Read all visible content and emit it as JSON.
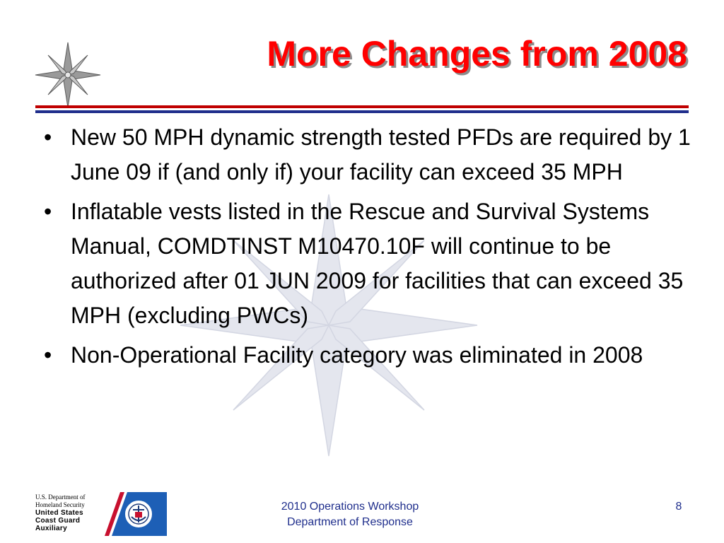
{
  "slide": {
    "title": "More Changes from 2008",
    "bullets": [
      "New 50 MPH dynamic strength tested PFDs are required by 1 June 09 if (and only if) your facility can exceed 35 MPH",
      "Inflatable vests listed in the Rescue and Survival Systems Manual, COMDTINST M10470.10F will continue to be authorized after 01 JUN 2009 for facilities that can exceed 35 MPH (excluding PWCs)",
      "Non-Operational Facility category was eliminated in 2008"
    ],
    "bullet_glyph": "•"
  },
  "footer": {
    "logo_lines": [
      "U.S. Department of",
      "Homeland Security",
      "United States",
      "Coast Guard",
      "Auxiliary"
    ],
    "center_line_1": "2010 Operations Workshop",
    "center_line_2": "Department of Response",
    "page_number": "8"
  },
  "colors": {
    "title": "#ff0000",
    "title_shadow": "#8c8c8c",
    "rule_red": "#c00000",
    "rule_blue": "#1f2e8c",
    "footer_text": "#1f2e8c",
    "watermark": "#e4e6ee"
  },
  "icons": {
    "header": "compass-rose-icon",
    "watermark": "compass-rose-watermark-icon",
    "footer": "coast-guard-auxiliary-logo-icon"
  }
}
